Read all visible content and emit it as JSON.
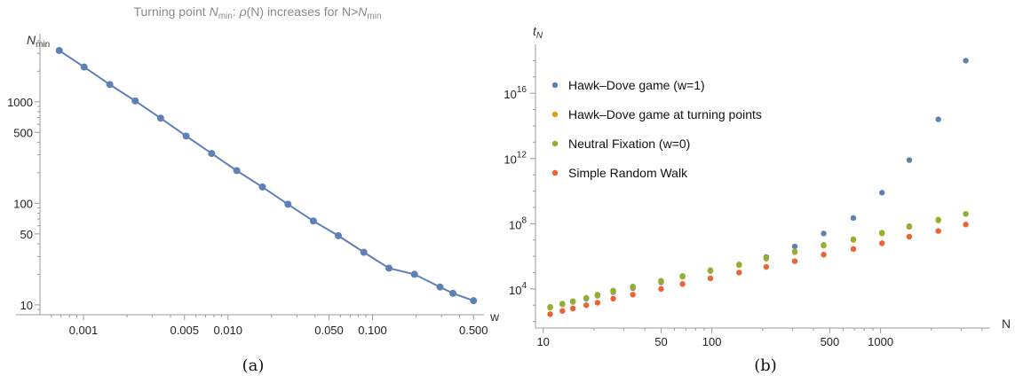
{
  "chart_data": [
    {
      "type": "line",
      "title": "Turning point N_min: ρ(N) increases for N>N_min",
      "title_parts": {
        "a": "Turning point ",
        "b": "N",
        "c": "min",
        "d": ": ",
        "e": "ρ",
        "f": "(N) increases for N>",
        "g": "N",
        "h": "min"
      },
      "xlabel": "w",
      "ylabel_main": "N",
      "ylabel_sub": "min",
      "xscale": "log",
      "yscale": "log",
      "xlim": [
        0.0005,
        0.55
      ],
      "ylim": [
        8,
        4500
      ],
      "xticks": [
        0.001,
        0.005,
        0.01,
        0.05,
        0.1,
        0.5
      ],
      "xtick_labels": [
        "0.001",
        "0.005",
        "0.010",
        "0.050",
        "0.100",
        "0.500"
      ],
      "yticks": [
        10,
        50,
        100,
        500,
        1000
      ],
      "ytick_labels": [
        "10",
        "50",
        "100",
        "500",
        "1000"
      ],
      "color": "#5e81b5",
      "series": [
        {
          "x": [
            0.00068,
            0.00101,
            0.00152,
            0.00228,
            0.00342,
            0.00513,
            0.0077,
            0.0115,
            0.0173,
            0.026,
            0.039,
            0.058,
            0.087,
            0.13,
            0.195,
            0.293,
            0.36,
            0.5
          ],
          "y": [
            3200,
            2200,
            1480,
            1020,
            690,
            460,
            310,
            210,
            145,
            98,
            67,
            48,
            33,
            23,
            20,
            15,
            13,
            11
          ]
        }
      ],
      "caption": "(a)"
    },
    {
      "type": "scatter",
      "xlabel": "N",
      "ylabel_main": "t",
      "ylabel_sub": "N",
      "xscale": "log",
      "yscale": "log",
      "xlim": [
        9,
        4200
      ],
      "ylim_log10": [
        1.6,
        19.0
      ],
      "xticks": [
        10,
        50,
        100,
        500,
        1000
      ],
      "xtick_labels": [
        "10",
        "50",
        "100",
        "500",
        "1000"
      ],
      "yticks_log10": [
        4,
        8,
        12,
        16
      ],
      "ytick_labels": [
        "4",
        "8",
        "12",
        "16"
      ],
      "legend_position": "top-left",
      "series": [
        {
          "name": "Hawk–Dove game (w=1)",
          "color": "#5e81b5",
          "x": [
            11,
            13,
            15,
            18,
            21,
            26,
            34,
            50,
            67,
            98,
            145,
            210,
            310,
            460,
            690,
            1020,
            1480,
            2200,
            3200
          ],
          "y_log10": [
            2.85,
            3.05,
            3.2,
            3.4,
            3.58,
            3.8,
            4.05,
            4.4,
            4.75,
            5.1,
            5.5,
            5.95,
            6.6,
            7.4,
            8.35,
            9.9,
            11.9,
            14.4,
            18.0
          ]
        },
        {
          "name": "Hawk–Dove game at turning points",
          "color": "#e19c24",
          "x": [
            11,
            13,
            15,
            18,
            21,
            26,
            34,
            50,
            67,
            98,
            145,
            210,
            310,
            460,
            690,
            1020,
            1480,
            2200,
            3200
          ],
          "y_log10": [
            2.85,
            3.05,
            3.2,
            3.45,
            3.6,
            3.85,
            4.1,
            4.45,
            4.75,
            5.1,
            5.45,
            5.85,
            6.25,
            6.65,
            7.0,
            7.4,
            7.8,
            8.2,
            8.6
          ]
        },
        {
          "name": "Neutral Fixation (w=0)",
          "color": "#8fb032",
          "x": [
            11,
            13,
            15,
            18,
            21,
            26,
            34,
            50,
            67,
            98,
            145,
            210,
            310,
            460,
            690,
            1020,
            1480,
            2200,
            3200
          ],
          "y_log10": [
            2.9,
            3.1,
            3.25,
            3.45,
            3.65,
            3.9,
            4.15,
            4.5,
            4.8,
            5.15,
            5.5,
            5.9,
            6.3,
            6.7,
            7.05,
            7.45,
            7.85,
            8.25,
            8.6
          ]
        },
        {
          "name": "Simple Random Walk",
          "color": "#eb6235",
          "x": [
            11,
            13,
            15,
            18,
            21,
            26,
            34,
            50,
            67,
            98,
            145,
            210,
            310,
            460,
            690,
            1020,
            1480,
            2200,
            3200
          ],
          "y_log10": [
            2.45,
            2.65,
            2.8,
            3.0,
            3.15,
            3.4,
            3.65,
            4.0,
            4.3,
            4.65,
            5.0,
            5.35,
            5.7,
            6.1,
            6.45,
            6.8,
            7.2,
            7.55,
            7.95
          ]
        }
      ],
      "caption": "(b)"
    }
  ]
}
